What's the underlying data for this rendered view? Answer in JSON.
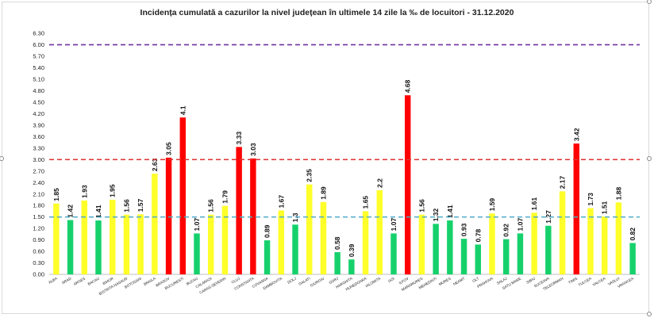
{
  "chart_data": {
    "type": "bar",
    "title": "Incidența cumulată a cazurilor la nivel județean în ultimele 14 zile la ‰ de locuitori - 31.12.2020",
    "xlabel": "",
    "ylabel": "",
    "ylim": [
      0,
      6.3
    ],
    "yticks": [
      "0.00",
      "0.30",
      "0.60",
      "0.90",
      "1.20",
      "1.50",
      "1.80",
      "2.10",
      "2.40",
      "2.70",
      "3.00",
      "3.30",
      "3.60",
      "3.90",
      "4.20",
      "4.50",
      "4.80",
      "5.10",
      "5.40",
      "5.70",
      "6.00",
      "6.30"
    ],
    "grid": false,
    "legend": "none",
    "categories": [
      "ALBA",
      "ARAD",
      "ARGES",
      "BACAU",
      "BIHOR",
      "BISTRITA NASAUD",
      "BOTOSANI",
      "BRAILA",
      "BRASOV",
      "BUCURESTI",
      "BUZAU",
      "CALARASI",
      "CARAS-SEVERIN",
      "CLUJ",
      "CONSTANTA",
      "COVASNA",
      "DAMBOVITA",
      "DOLJ",
      "GALATI",
      "GIURGIU",
      "GORJ",
      "HARGHITA",
      "HUNEDOARA",
      "IALOMITA",
      "IASI",
      "ILFOV",
      "MARAMURES",
      "MEHEDINTI",
      "MURES",
      "NEAMT",
      "OLT",
      "PRAHOVA",
      "SALAJ",
      "SATU MARE",
      "SIBIU",
      "SUCEAVA",
      "TELEORMAN",
      "TIMIS",
      "TULCEA",
      "VALCEA",
      "VASLUI",
      "VRANCEA"
    ],
    "values": [
      1.85,
      1.42,
      1.93,
      1.41,
      1.95,
      1.56,
      1.57,
      2.63,
      3.05,
      4.1,
      1.07,
      1.56,
      1.79,
      3.33,
      3.03,
      0.89,
      1.67,
      1.3,
      2.35,
      1.89,
      0.58,
      0.39,
      1.65,
      2.2,
      1.07,
      4.68,
      1.56,
      1.32,
      1.41,
      0.93,
      0.78,
      1.59,
      0.92,
      1.07,
      1.61,
      1.27,
      2.17,
      3.42,
      1.73,
      1.51,
      1.88,
      0.82
    ],
    "data_labels": [
      "1.85",
      "1.42",
      "1.93",
      "1.41",
      "1.95",
      "1.56",
      "1.57",
      "2.63",
      "3.05",
      "4.1",
      "1.07",
      "1.56",
      "1.79",
      "3.33",
      "3.03",
      "0.89",
      "1.67",
      "1.3",
      "2.35",
      "1.89",
      "0.58",
      "0.39",
      "1.65",
      "2.2",
      "1.07",
      "4.68",
      "1.56",
      "1.32",
      "1.41",
      "0.93",
      "0.78",
      "1.59",
      "0.92",
      "1.07",
      "1.61",
      "1.27",
      "2.17",
      "3.42",
      "1.73",
      "1.51",
      "1.88",
      "0.82"
    ],
    "thresholds": [
      {
        "value": 1.5,
        "color": "#4bacc6",
        "style": "dashed"
      },
      {
        "value": 3.0,
        "color": "#e03030",
        "style": "dashed"
      },
      {
        "value": 6.0,
        "color": "#7030a0",
        "style": "dashed"
      }
    ],
    "colors": {
      "green": "#16d16b",
      "yellow": "#ffff2a",
      "red": "#ff0000"
    }
  }
}
